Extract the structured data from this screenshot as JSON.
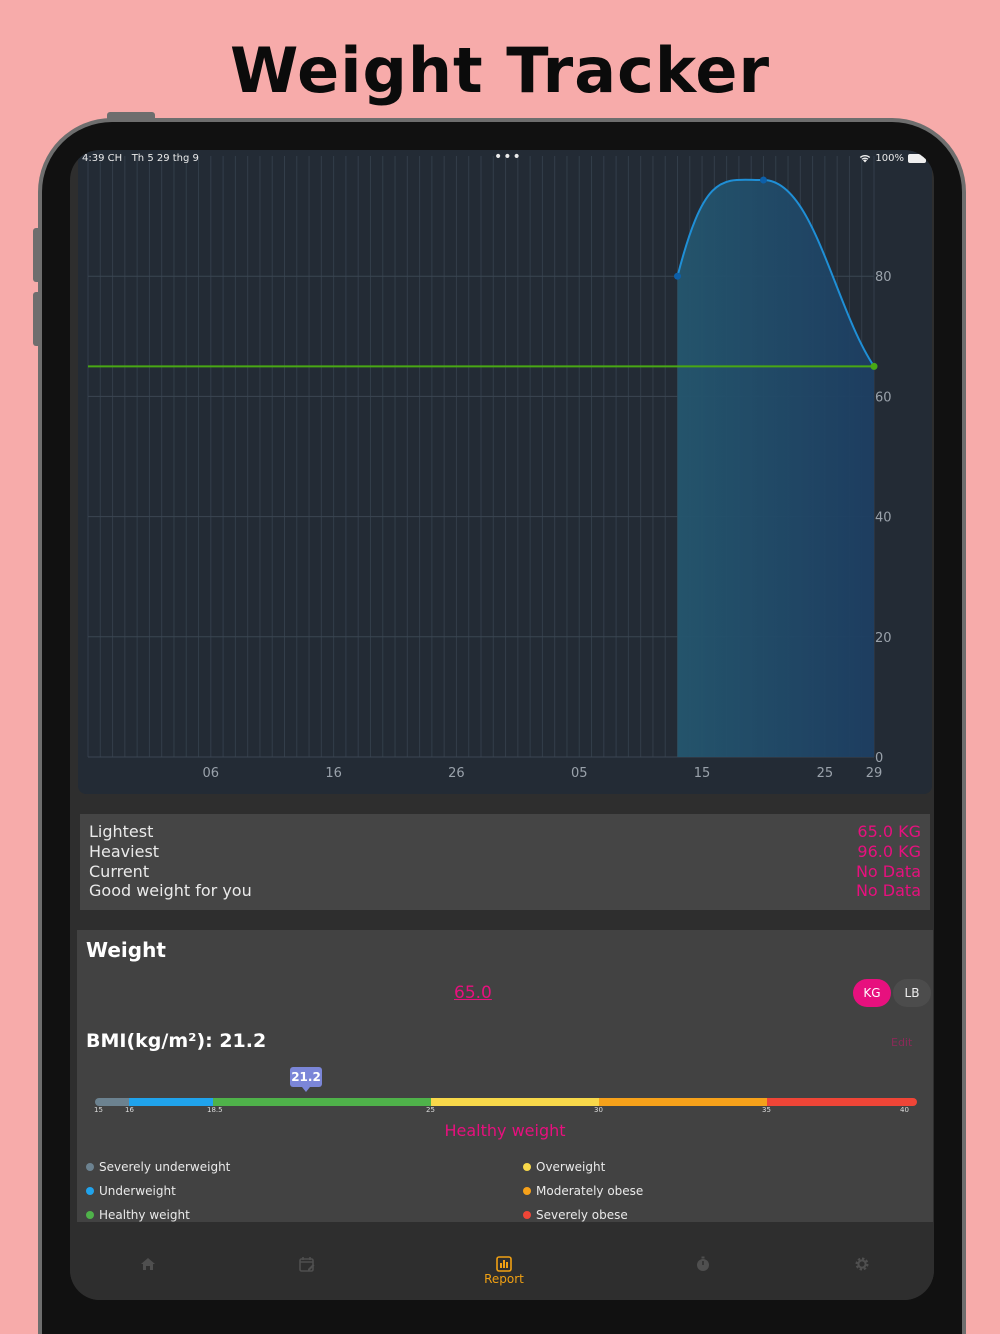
{
  "headline": "Weight Tracker",
  "status_bar": {
    "time": "4:39 CH",
    "date": "Th 5 29 thg 9",
    "dots": "•••",
    "battery": "100%"
  },
  "chart_data": {
    "type": "area",
    "x_ticks": [
      "06",
      "16",
      "26",
      "05",
      "15",
      "25",
      "29"
    ],
    "y_ticks": [
      "0",
      "20",
      "40",
      "60",
      "80"
    ],
    "ylim": [
      0,
      100
    ],
    "series": [
      {
        "values": [
          80,
          96,
          65
        ],
        "x": [
          "11",
          "18",
          "29"
        ],
        "color": "#1f8fd6"
      }
    ],
    "goal_line": {
      "value": 65,
      "color": "#49a814"
    },
    "grid": true
  },
  "stats": {
    "rows": [
      {
        "label": "Lightest",
        "value": "65.0 KG"
      },
      {
        "label": "Heaviest",
        "value": "96.0 KG"
      },
      {
        "label": "Current",
        "value": "No Data"
      },
      {
        "label": "Good weight for you",
        "value": "No Data"
      }
    ]
  },
  "weight": {
    "title": "Weight",
    "value": "65.0",
    "unit_kg": "KG",
    "unit_lb": "LB",
    "bmi_title": "BMI(kg/m²): 21.2",
    "bmi_edit": "Edit",
    "bmi_value": "21.2",
    "bmi_status": "Healthy weight",
    "bmi_ticks": [
      "15",
      "16",
      "18.5",
      "25",
      "30",
      "35",
      "40"
    ],
    "legend": [
      {
        "label": "Severely underweight",
        "color": "#6c8290"
      },
      {
        "label": "Underweight",
        "color": "#20a3ec"
      },
      {
        "label": "Healthy weight",
        "color": "#4fb24a"
      },
      {
        "label": "Overweight",
        "color": "#f8d84a"
      },
      {
        "label": "Moderately obese",
        "color": "#f6a11a"
      },
      {
        "label": "Severely obese",
        "color": "#ef4537"
      }
    ]
  },
  "tabbar": {
    "report_label": "Report"
  },
  "colors": {
    "accent": "#e7107e",
    "tab_active": "#f0a013",
    "background": "#f7abaa"
  }
}
